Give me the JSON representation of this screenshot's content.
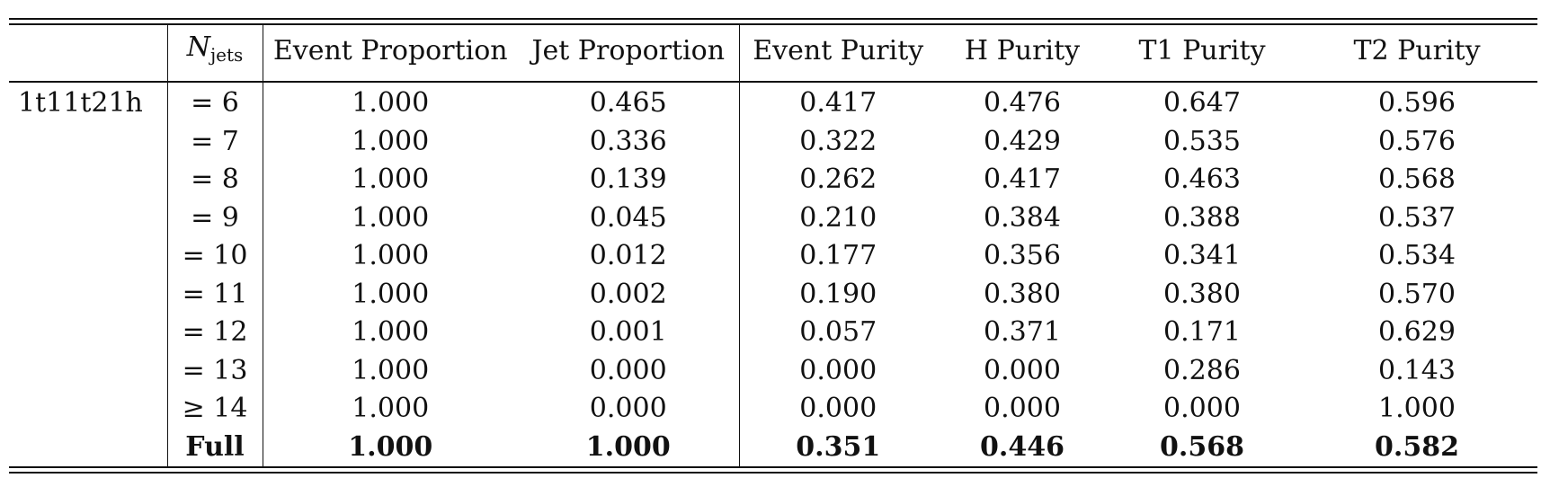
{
  "table": {
    "columns": [
      "",
      "N_jets",
      "Event Proportion",
      "Jet Proportion",
      "Event Purity",
      "H Purity",
      "T1 Purity",
      "T2 Purity"
    ],
    "header": {
      "njets_base": "N",
      "njets_sub": "jets"
    },
    "group_label": "1t11t21h",
    "rows": [
      {
        "njets": "= 6",
        "event_prop": "1.000",
        "jet_prop": "0.465",
        "event_pur": "0.417",
        "h_pur": "0.476",
        "t1_pur": "0.647",
        "t2_pur": "0.596"
      },
      {
        "njets": "= 7",
        "event_prop": "1.000",
        "jet_prop": "0.336",
        "event_pur": "0.322",
        "h_pur": "0.429",
        "t1_pur": "0.535",
        "t2_pur": "0.576"
      },
      {
        "njets": "= 8",
        "event_prop": "1.000",
        "jet_prop": "0.139",
        "event_pur": "0.262",
        "h_pur": "0.417",
        "t1_pur": "0.463",
        "t2_pur": "0.568"
      },
      {
        "njets": "= 9",
        "event_prop": "1.000",
        "jet_prop": "0.045",
        "event_pur": "0.210",
        "h_pur": "0.384",
        "t1_pur": "0.388",
        "t2_pur": "0.537"
      },
      {
        "njets": "= 10",
        "event_prop": "1.000",
        "jet_prop": "0.012",
        "event_pur": "0.177",
        "h_pur": "0.356",
        "t1_pur": "0.341",
        "t2_pur": "0.534"
      },
      {
        "njets": "= 11",
        "event_prop": "1.000",
        "jet_prop": "0.002",
        "event_pur": "0.190",
        "h_pur": "0.380",
        "t1_pur": "0.380",
        "t2_pur": "0.570"
      },
      {
        "njets": "= 12",
        "event_prop": "1.000",
        "jet_prop": "0.001",
        "event_pur": "0.057",
        "h_pur": "0.371",
        "t1_pur": "0.171",
        "t2_pur": "0.629"
      },
      {
        "njets": "= 13",
        "event_prop": "1.000",
        "jet_prop": "0.000",
        "event_pur": "0.000",
        "h_pur": "0.000",
        "t1_pur": "0.286",
        "t2_pur": "0.143"
      },
      {
        "njets": "≥ 14",
        "event_prop": "1.000",
        "jet_prop": "0.000",
        "event_pur": "0.000",
        "h_pur": "0.000",
        "t1_pur": "0.000",
        "t2_pur": "1.000"
      },
      {
        "njets": "Full",
        "event_prop": "1.000",
        "jet_prop": "1.000",
        "event_pur": "0.351",
        "h_pur": "0.446",
        "t1_pur": "0.568",
        "t2_pur": "0.582",
        "bold": true
      }
    ]
  }
}
